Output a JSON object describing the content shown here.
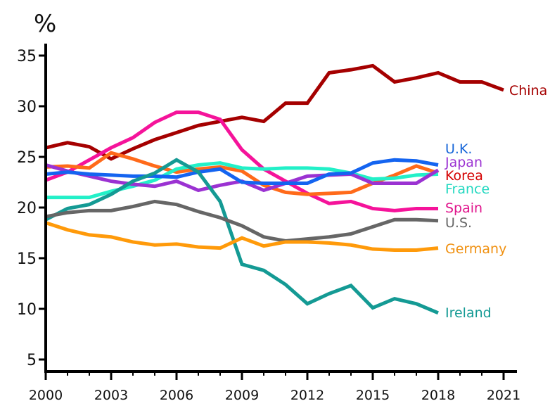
{
  "chart_data": {
    "type": "line",
    "title": "",
    "ylabel": "%",
    "xlabel": "",
    "xlim": [
      2000,
      2021
    ],
    "ylim": [
      3.5,
      36
    ],
    "yticks": [
      5,
      10,
      15,
      20,
      25,
      30,
      35
    ],
    "xticks": [
      2000,
      2003,
      2006,
      2009,
      2012,
      2015,
      2018,
      2021
    ],
    "grid": false,
    "legend": "inline labels at line ends (right)",
    "series": [
      {
        "name": "China",
        "color": "#a50000",
        "label_color": "#a50000",
        "x_start": 2000,
        "values": [
          25.9,
          26.4,
          26.0,
          24.8,
          25.8,
          26.7,
          27.4,
          28.1,
          28.5,
          28.9,
          28.5,
          30.3,
          30.3,
          33.3,
          33.6,
          34.0,
          32.4,
          32.8,
          33.3,
          32.4,
          32.4,
          31.6
        ]
      },
      {
        "name": "Spain",
        "color": "#f5139a",
        "label_color": "#e0148c",
        "x_start": 2000,
        "values": [
          22.7,
          23.5,
          24.7,
          25.9,
          26.9,
          28.4,
          29.4,
          29.4,
          28.7,
          25.7,
          23.8,
          22.6,
          21.4,
          20.4,
          20.6,
          19.9,
          19.7,
          19.9,
          19.9
        ]
      },
      {
        "name": "Korea",
        "color": "#ff6a1a",
        "label_color": "#d40000",
        "x_start": 2000,
        "values": [
          24.0,
          24.1,
          23.9,
          25.4,
          24.8,
          24.1,
          23.5,
          23.8,
          24.0,
          23.6,
          22.2,
          21.5,
          21.3,
          21.4,
          21.5,
          22.4,
          23.2,
          24.1,
          23.4
        ]
      },
      {
        "name": "France",
        "color": "#22f0c8",
        "label_color": "#22d8c0",
        "x_start": 2000,
        "values": [
          21.0,
          21.0,
          21.0,
          21.6,
          22.1,
          22.7,
          23.8,
          24.2,
          24.4,
          23.9,
          23.8,
          23.9,
          23.9,
          23.8,
          23.4,
          22.8,
          22.9,
          23.2,
          23.3
        ]
      },
      {
        "name": "Japan",
        "color": "#9b32d2",
        "label_color": "#9b32d2",
        "x_start": 2000,
        "values": [
          24.2,
          23.6,
          23.1,
          22.6,
          22.3,
          22.1,
          22.6,
          21.7,
          22.2,
          22.6,
          21.7,
          22.4,
          23.1,
          23.2,
          23.3,
          22.4,
          22.4,
          22.4,
          23.7
        ]
      },
      {
        "name": "U.K.",
        "color": "#1464f0",
        "label_color": "#1464d8",
        "x_start": 2000,
        "values": [
          23.3,
          23.5,
          23.3,
          23.2,
          23.1,
          23.1,
          23.0,
          23.5,
          23.8,
          22.5,
          22.4,
          22.4,
          22.4,
          23.3,
          23.4,
          24.4,
          24.7,
          24.6,
          24.2
        ]
      },
      {
        "name": "Ireland",
        "color": "#149a94",
        "label_color": "#149a94",
        "x_start": 2000,
        "values": [
          18.8,
          19.9,
          20.3,
          21.3,
          22.6,
          23.4,
          24.7,
          23.5,
          20.6,
          14.4,
          13.8,
          12.4,
          10.5,
          11.5,
          12.3,
          10.1,
          11.0,
          10.5,
          9.6
        ]
      },
      {
        "name": "U.S.",
        "color": "#666666",
        "label_color": "#666666",
        "x_start": 2000,
        "values": [
          19.1,
          19.5,
          19.7,
          19.7,
          20.1,
          20.6,
          20.3,
          19.6,
          19.0,
          18.2,
          17.1,
          16.7,
          16.9,
          17.1,
          17.4,
          18.1,
          18.8,
          18.8,
          18.7
        ]
      },
      {
        "name": "Germany",
        "color": "#ff9a0a",
        "label_color": "#f09010",
        "x_start": 2000,
        "values": [
          18.5,
          17.8,
          17.3,
          17.1,
          16.6,
          16.3,
          16.4,
          16.1,
          16.0,
          17.0,
          16.2,
          16.6,
          16.6,
          16.5,
          16.3,
          15.9,
          15.8,
          15.8,
          16.0
        ]
      }
    ]
  }
}
